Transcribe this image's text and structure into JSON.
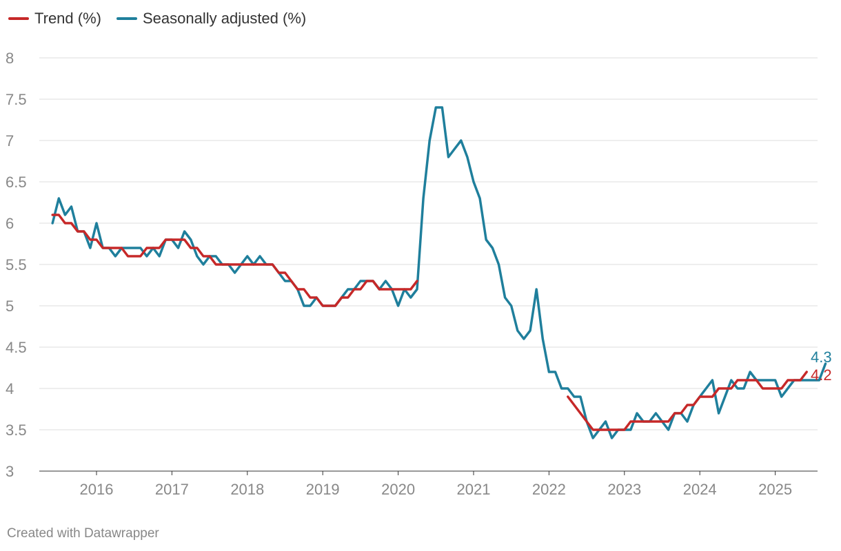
{
  "chart_data": {
    "type": "line",
    "title": "",
    "xlabel": "",
    "ylabel": "",
    "ylim": [
      3,
      8
    ],
    "y_ticks": [
      "3",
      "3.5",
      "4",
      "4.5",
      "5",
      "5.5",
      "6",
      "6.5",
      "7",
      "7.5",
      "8"
    ],
    "x_ticks": [
      "2016",
      "2017",
      "2018",
      "2019",
      "2020",
      "2021",
      "2022",
      "2023",
      "2024",
      "2025"
    ],
    "grid": "horizontal",
    "legend_position": "top-left",
    "series": [
      {
        "name": "Trend (%)",
        "color": "#c62828",
        "end_label": "4.2",
        "segments": [
          {
            "start": "2015-06",
            "values": [
              6.1,
              6.1,
              6.0,
              6.0,
              5.9,
              5.9,
              5.8,
              5.8,
              5.7,
              5.7,
              5.7,
              5.7,
              5.6,
              5.6,
              5.6,
              5.7,
              5.7,
              5.7,
              5.8,
              5.8,
              5.8,
              5.8,
              5.7,
              5.7,
              5.6,
              5.6,
              5.5,
              5.5,
              5.5,
              5.5,
              5.5,
              5.5,
              5.5,
              5.5,
              5.5,
              5.5,
              5.4,
              5.4,
              5.3,
              5.2,
              5.2,
              5.1,
              5.1,
              5.0,
              5.0,
              5.0,
              5.1,
              5.1,
              5.2,
              5.2,
              5.3,
              5.3,
              5.2,
              5.2,
              5.2,
              5.2,
              5.2,
              5.2,
              5.3
            ]
          },
          {
            "start": "2022-04",
            "values": [
              3.9,
              3.8,
              3.7,
              3.6,
              3.5,
              3.5,
              3.5,
              3.5,
              3.5,
              3.5,
              3.6,
              3.6,
              3.6,
              3.6,
              3.6,
              3.6,
              3.6,
              3.7,
              3.7,
              3.8,
              3.8,
              3.9,
              3.9,
              3.9,
              4.0,
              4.0,
              4.0,
              4.1,
              4.1,
              4.1,
              4.1,
              4.0,
              4.0,
              4.0,
              4.0,
              4.1,
              4.1,
              4.1,
              4.2
            ]
          }
        ]
      },
      {
        "name": "Seasonally adjusted (%)",
        "color": "#1f7f9c",
        "end_label": "4.3",
        "segments": [
          {
            "start": "2015-06",
            "values": [
              6.0,
              6.3,
              6.1,
              6.2,
              5.9,
              5.9,
              5.7,
              6.0,
              5.7,
              5.7,
              5.6,
              5.7,
              5.7,
              5.7,
              5.7,
              5.6,
              5.7,
              5.6,
              5.8,
              5.8,
              5.7,
              5.9,
              5.8,
              5.6,
              5.5,
              5.6,
              5.6,
              5.5,
              5.5,
              5.4,
              5.5,
              5.6,
              5.5,
              5.6,
              5.5,
              5.5,
              5.4,
              5.3,
              5.3,
              5.2,
              5.0,
              5.0,
              5.1,
              5.0,
              5.0,
              5.0,
              5.1,
              5.2,
              5.2,
              5.3,
              5.3,
              5.3,
              5.2,
              5.3,
              5.2,
              5.0,
              5.2,
              5.1,
              5.2,
              6.3,
              7.0,
              7.4,
              7.4,
              6.8,
              6.9,
              7.0,
              6.8,
              6.5,
              6.3,
              5.8,
              5.7,
              5.5,
              5.1,
              5.0,
              4.7,
              4.6,
              4.7,
              5.2,
              4.6,
              4.2,
              4.2,
              4.0,
              4.0,
              3.9,
              3.9,
              3.6,
              3.4,
              3.5,
              3.6,
              3.4,
              3.5,
              3.5,
              3.5,
              3.7,
              3.6,
              3.6,
              3.7,
              3.6,
              3.5,
              3.7,
              3.7,
              3.6,
              3.8,
              3.9,
              4.0,
              4.1,
              3.7,
              3.9,
              4.1,
              4.0,
              4.0,
              4.2,
              4.1,
              4.1,
              4.1,
              4.1,
              3.9,
              4.0,
              4.1,
              4.1,
              4.1,
              4.1,
              4.1,
              4.3
            ]
          }
        ]
      }
    ]
  },
  "legend": {
    "items": [
      {
        "label": "Trend (%)",
        "color": "#c62828"
      },
      {
        "label": "Seasonally adjusted (%)",
        "color": "#1f7f9c"
      }
    ]
  },
  "footer": {
    "credit": "Created with Datawrapper"
  }
}
